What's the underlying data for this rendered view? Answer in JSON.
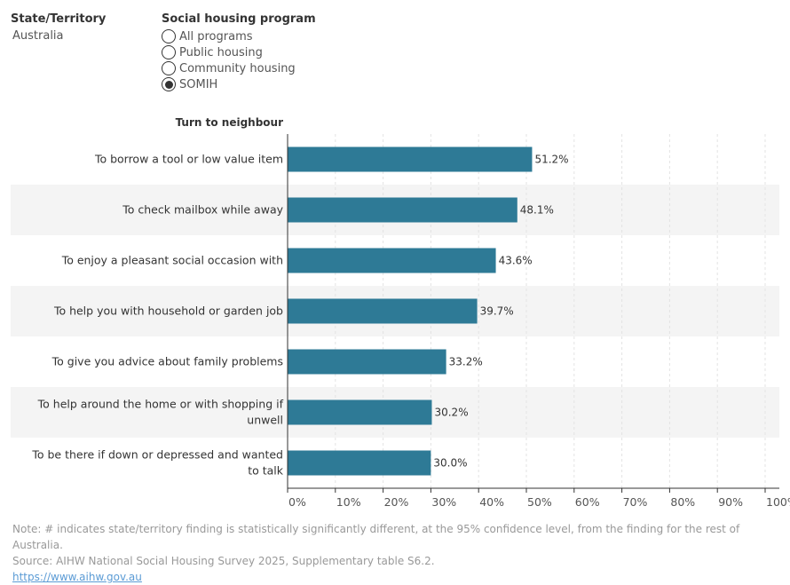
{
  "filters": {
    "state": {
      "label": "State/Territory",
      "value": "Australia"
    },
    "program": {
      "label": "Social housing program",
      "options": [
        "All programs",
        "Public housing",
        "Community housing",
        "SOMIH"
      ],
      "selected": "SOMIH"
    }
  },
  "chart_data": {
    "type": "bar",
    "orientation": "horizontal",
    "title": "Turn to neighbour",
    "categories": [
      "To borrow a tool or low value item",
      "To check mailbox while away",
      "To enjoy a pleasant social occasion with",
      "To help you with household or garden job",
      "To give you advice about family problems",
      "To help around the home or with shopping if unwell",
      "To be there if down or depressed and wanted to talk"
    ],
    "values": [
      51.2,
      48.1,
      43.6,
      39.7,
      33.2,
      30.2,
      30.0
    ],
    "value_labels": [
      "51.2%",
      "48.1%",
      "43.6%",
      "39.7%",
      "33.2%",
      "30.2%",
      "30.0%"
    ],
    "xlim": [
      0,
      100
    ],
    "xticks": [
      "0%",
      "10%",
      "20%",
      "30%",
      "40%",
      "50%",
      "60%",
      "70%",
      "80%",
      "90%",
      "100%"
    ],
    "grid": true,
    "bar_color": "#2e7a96",
    "band_color": "#f4f4f4"
  },
  "notes": {
    "note": "Note: # indicates state/territory finding is statistically significantly different, at the 95% confidence level, from the finding for the rest of Australia.",
    "source": "Source: AIHW National Social Housing Survey 2025, Supplementary table S6.2.",
    "link": "https://www.aihw.gov.au"
  }
}
